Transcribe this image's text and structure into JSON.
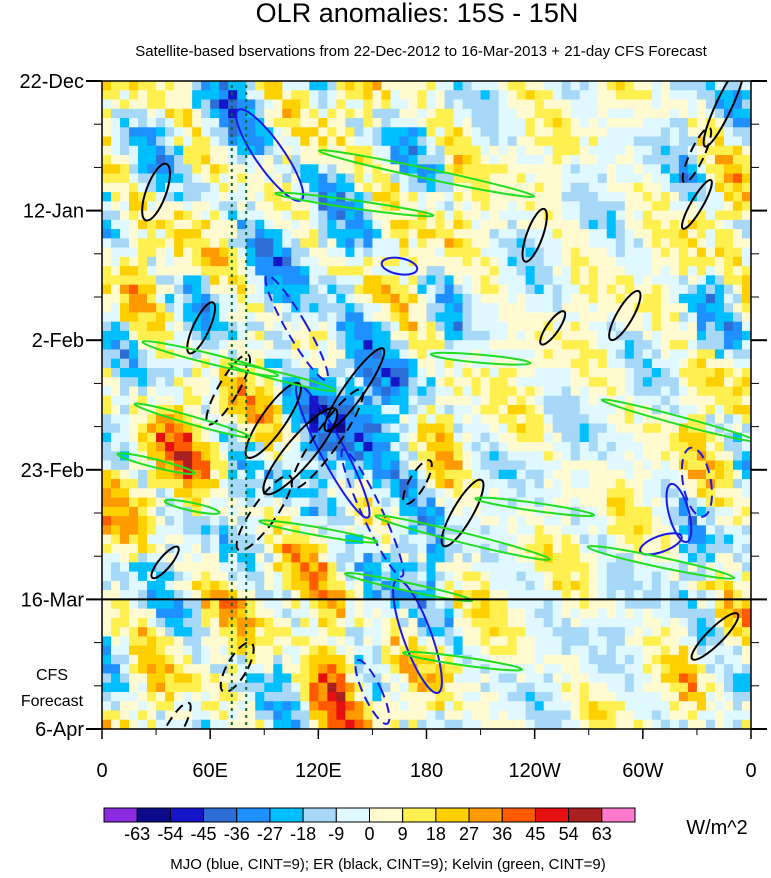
{
  "chart_data": {
    "type": "heatmap",
    "title": "OLR anomalies: 15S - 15N",
    "subtitle": "Satellite-based bservations from 22-Dec-2012 to 16-Mar-2013 + 21-day CFS Forecast",
    "x_ticks": [
      "0",
      "60E",
      "120E",
      "180",
      "120W",
      "60W",
      "0"
    ],
    "x_lon": [
      0,
      60,
      120,
      180,
      240,
      300,
      360
    ],
    "y_ticks": [
      "22-Dec",
      "12-Jan",
      "2-Feb",
      "23-Feb",
      "16-Mar",
      "6-Apr"
    ],
    "y_day": [
      0,
      21,
      42,
      63,
      84,
      105
    ],
    "forecast_label_line1": "CFS",
    "forecast_label_line2": "Forecast",
    "forecast_start_day": 84,
    "colorbar": {
      "labels": [
        "-63",
        "-54",
        "-45",
        "-36",
        "-27",
        "-18",
        "-9",
        "0",
        "9",
        "18",
        "27",
        "36",
        "45",
        "54",
        "63"
      ],
      "colors": [
        "#8a2be2",
        "#0a0a8a",
        "#1414c8",
        "#2d6ed6",
        "#1e90ff",
        "#00bfff",
        "#a8d8f8",
        "#e0f8ff",
        "#fffad0",
        "#fff050",
        "#ffd000",
        "#ff9a00",
        "#ff5a00",
        "#e61010",
        "#a82020",
        "#ff7acd"
      ],
      "units": "W/m^2"
    },
    "overlay_note": "MJO (blue, CINT=9); ER (black, CINT=9); Kelvin (green, CINT=9)",
    "series_colors": {
      "mjo": "#1a1ae6",
      "er": "#000000",
      "kelvin": "#22dd22"
    }
  }
}
